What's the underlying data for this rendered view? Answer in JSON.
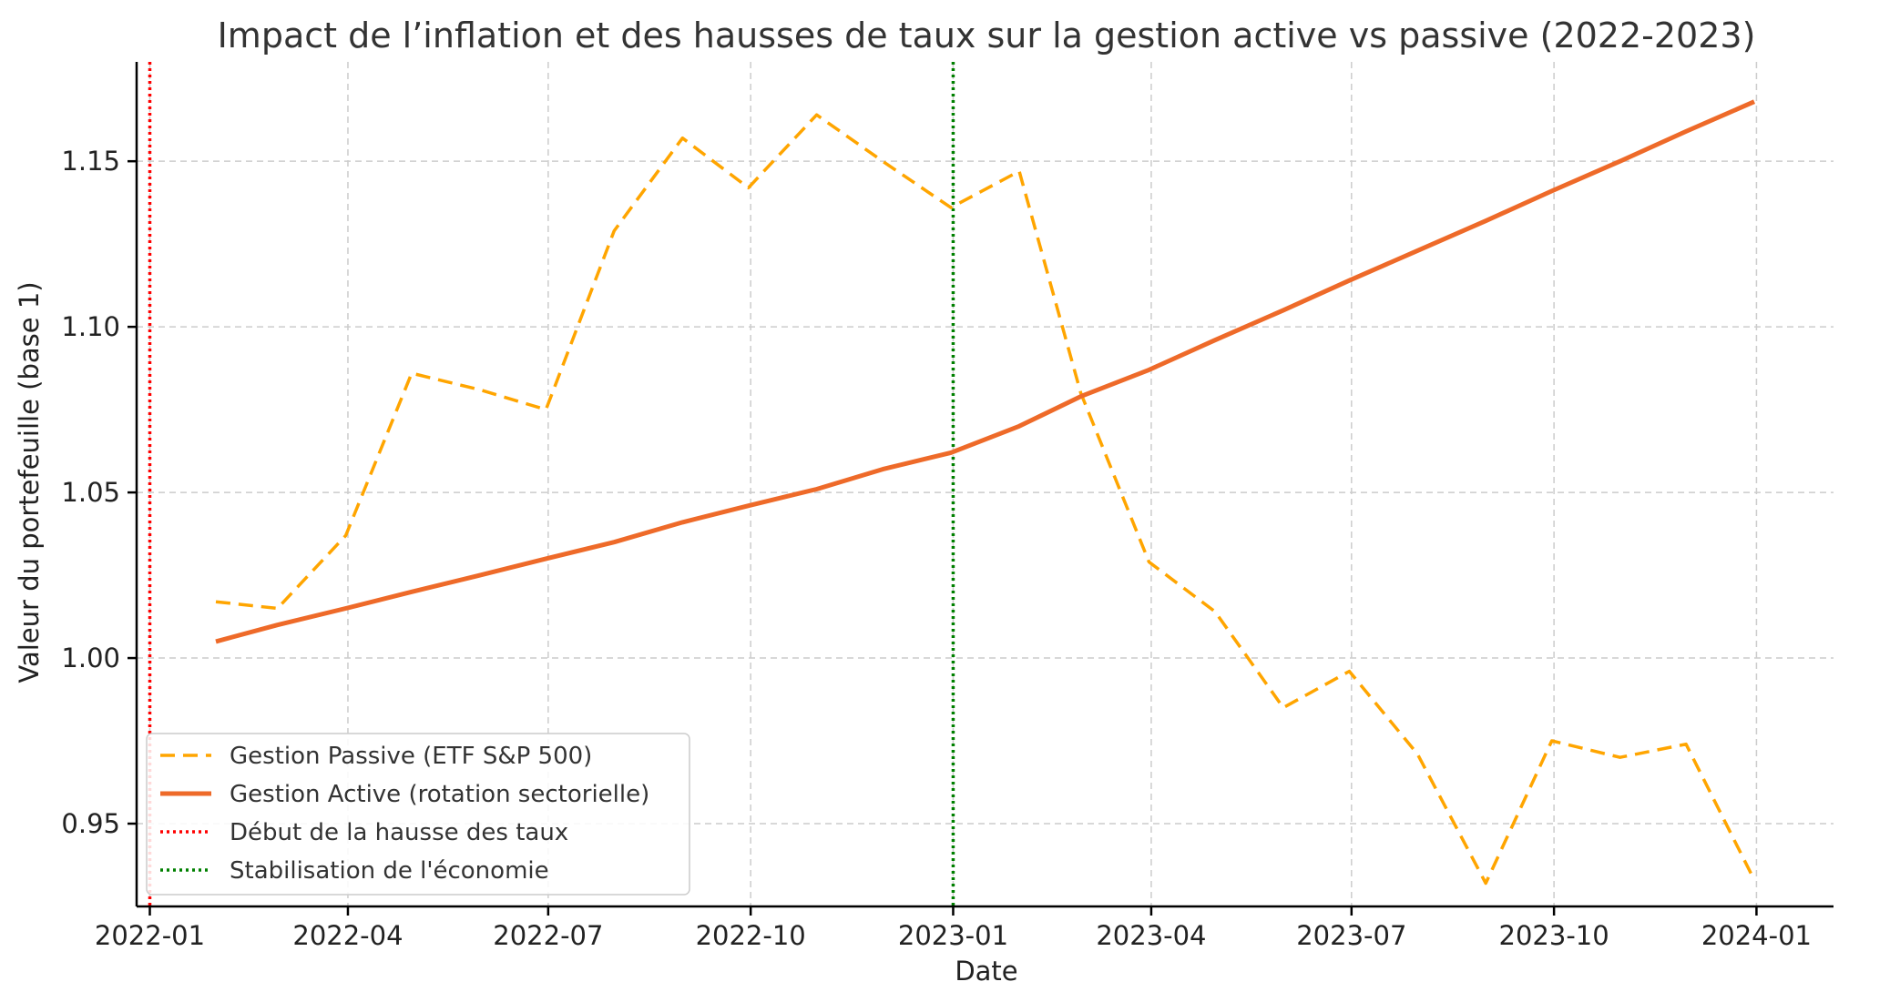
{
  "chart_data": {
    "type": "line",
    "title": "Impact de l’inflation et des hausses de taux sur la gestion active vs passive (2022-2023)",
    "xlabel": "Date",
    "ylabel": "Valeur du portefeuille (base 1)",
    "x_tick_labels": [
      "2022-01",
      "2022-04",
      "2022-07",
      "2022-10",
      "2023-01",
      "2023-04",
      "2023-07",
      "2023-10",
      "2024-01"
    ],
    "y_tick_labels": [
      "0.95",
      "1.00",
      "1.05",
      "1.10",
      "1.15"
    ],
    "xlim": [
      "2021-12-26",
      "2024-02-05"
    ],
    "ylim": [
      0.925,
      1.18
    ],
    "grid": true,
    "legend_position": "lower-left",
    "x": [
      "2022-01-31",
      "2022-02-28",
      "2022-03-31",
      "2022-04-30",
      "2022-05-31",
      "2022-06-30",
      "2022-07-31",
      "2022-08-31",
      "2022-09-30",
      "2022-10-31",
      "2022-11-30",
      "2022-12-31",
      "2023-01-31",
      "2023-02-28",
      "2023-03-31",
      "2023-04-30",
      "2023-05-31",
      "2023-06-30",
      "2023-07-31",
      "2023-08-31",
      "2023-09-30",
      "2023-10-31",
      "2023-11-30",
      "2023-12-31"
    ],
    "series": [
      {
        "name": "Gestion Passive (ETF S&P 500)",
        "color": "#FFA500",
        "style": "dashed",
        "values": [
          1.017,
          1.015,
          1.037,
          1.086,
          1.081,
          1.075,
          1.129,
          1.157,
          1.142,
          1.164,
          1.15,
          1.136,
          1.147,
          1.08,
          1.029,
          1.014,
          0.985,
          0.996,
          0.971,
          0.932,
          0.975,
          0.97,
          0.974,
          0.933
        ]
      },
      {
        "name": "Gestion Active (rotation sectorielle)",
        "color": "#EE6A29",
        "style": "solid",
        "values": [
          1.005,
          1.01,
          1.015,
          1.02,
          1.025,
          1.03,
          1.035,
          1.041,
          1.046,
          1.051,
          1.057,
          1.062,
          1.07,
          1.079,
          1.087,
          1.096,
          1.105,
          1.114,
          1.123,
          1.132,
          1.141,
          1.15,
          1.159,
          1.168
        ]
      }
    ],
    "vlines": [
      {
        "name": "Début de la hausse des taux",
        "x": "2022-01-01",
        "color": "#FF0000"
      },
      {
        "name": "Stabilisation de l'économie",
        "x": "2023-01-01",
        "color": "#008000"
      }
    ]
  }
}
